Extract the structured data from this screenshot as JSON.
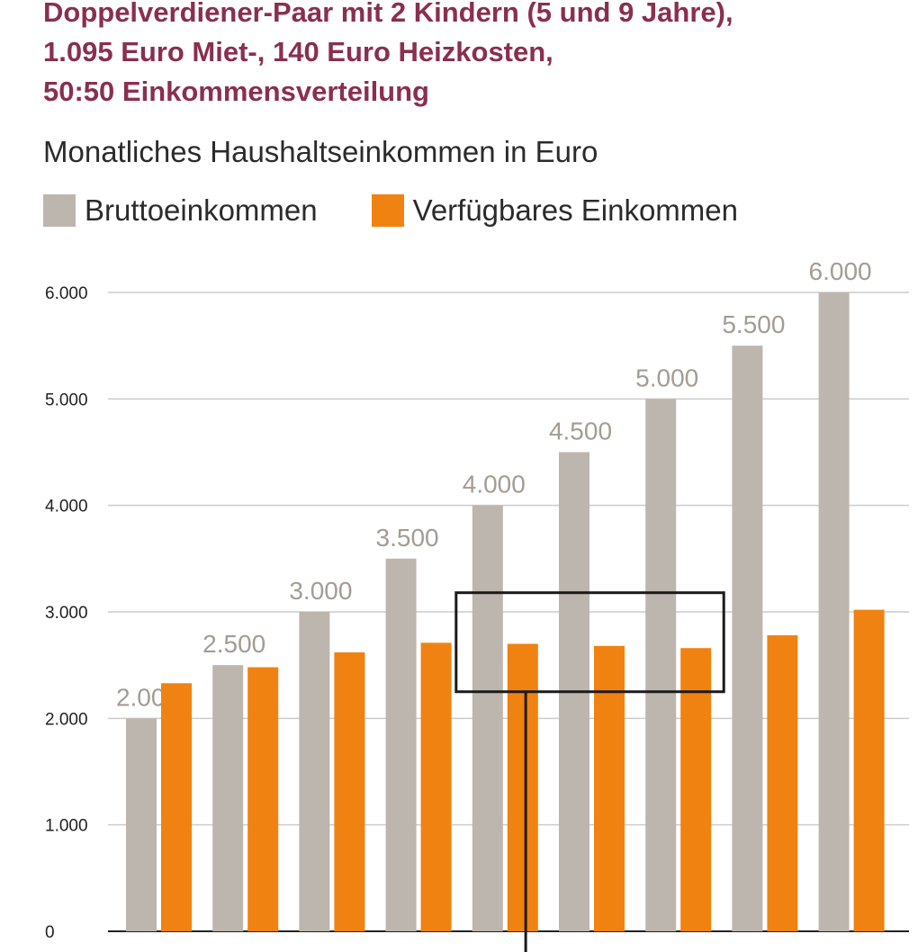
{
  "title_lines": [
    "Doppelverdiener-Paar mit 2 Kindern (5 und 9 Jahre),",
    "1.095 Euro Miet-, 140 Euro Heizkosten,",
    "50:50 Einkommensverteilung"
  ],
  "colors": {
    "title": "#8a2f4e",
    "brutto": "#bdb6ae",
    "verfuegbar": "#f08212",
    "grid": "#cccccc"
  },
  "chart_data": {
    "type": "bar",
    "title": "Monatliches Haushaltseinkommen in Euro",
    "legend": [
      "Bruttoeinkommen",
      "Verfügbares Einkommen"
    ],
    "legend_position": "top-left",
    "ylim": [
      0,
      6000
    ],
    "yticks": [
      0,
      1000,
      2000,
      3000,
      4000,
      5000,
      6000
    ],
    "ytick_labels": [
      "0",
      "1.000",
      "2.000",
      "3.000",
      "4.000",
      "5.000",
      "6.000"
    ],
    "grid": true,
    "series": [
      {
        "name": "Bruttoeinkommen",
        "values": [
          2000,
          2500,
          3000,
          3500,
          4000,
          4500,
          5000,
          5500,
          6000
        ],
        "labels": [
          "2.000",
          "2.500",
          "3.000",
          "3.500",
          "4.000",
          "4.500",
          "5.000",
          "5.500",
          "6.000"
        ]
      },
      {
        "name": "Verfügbares Einkommen",
        "values": [
          2330,
          2480,
          2620,
          2710,
          2700,
          2680,
          2660,
          2780,
          3020
        ]
      }
    ],
    "annotations": [
      {
        "type": "box",
        "bar_range": [
          4,
          6
        ],
        "y_range": [
          2250,
          3180
        ]
      }
    ]
  }
}
